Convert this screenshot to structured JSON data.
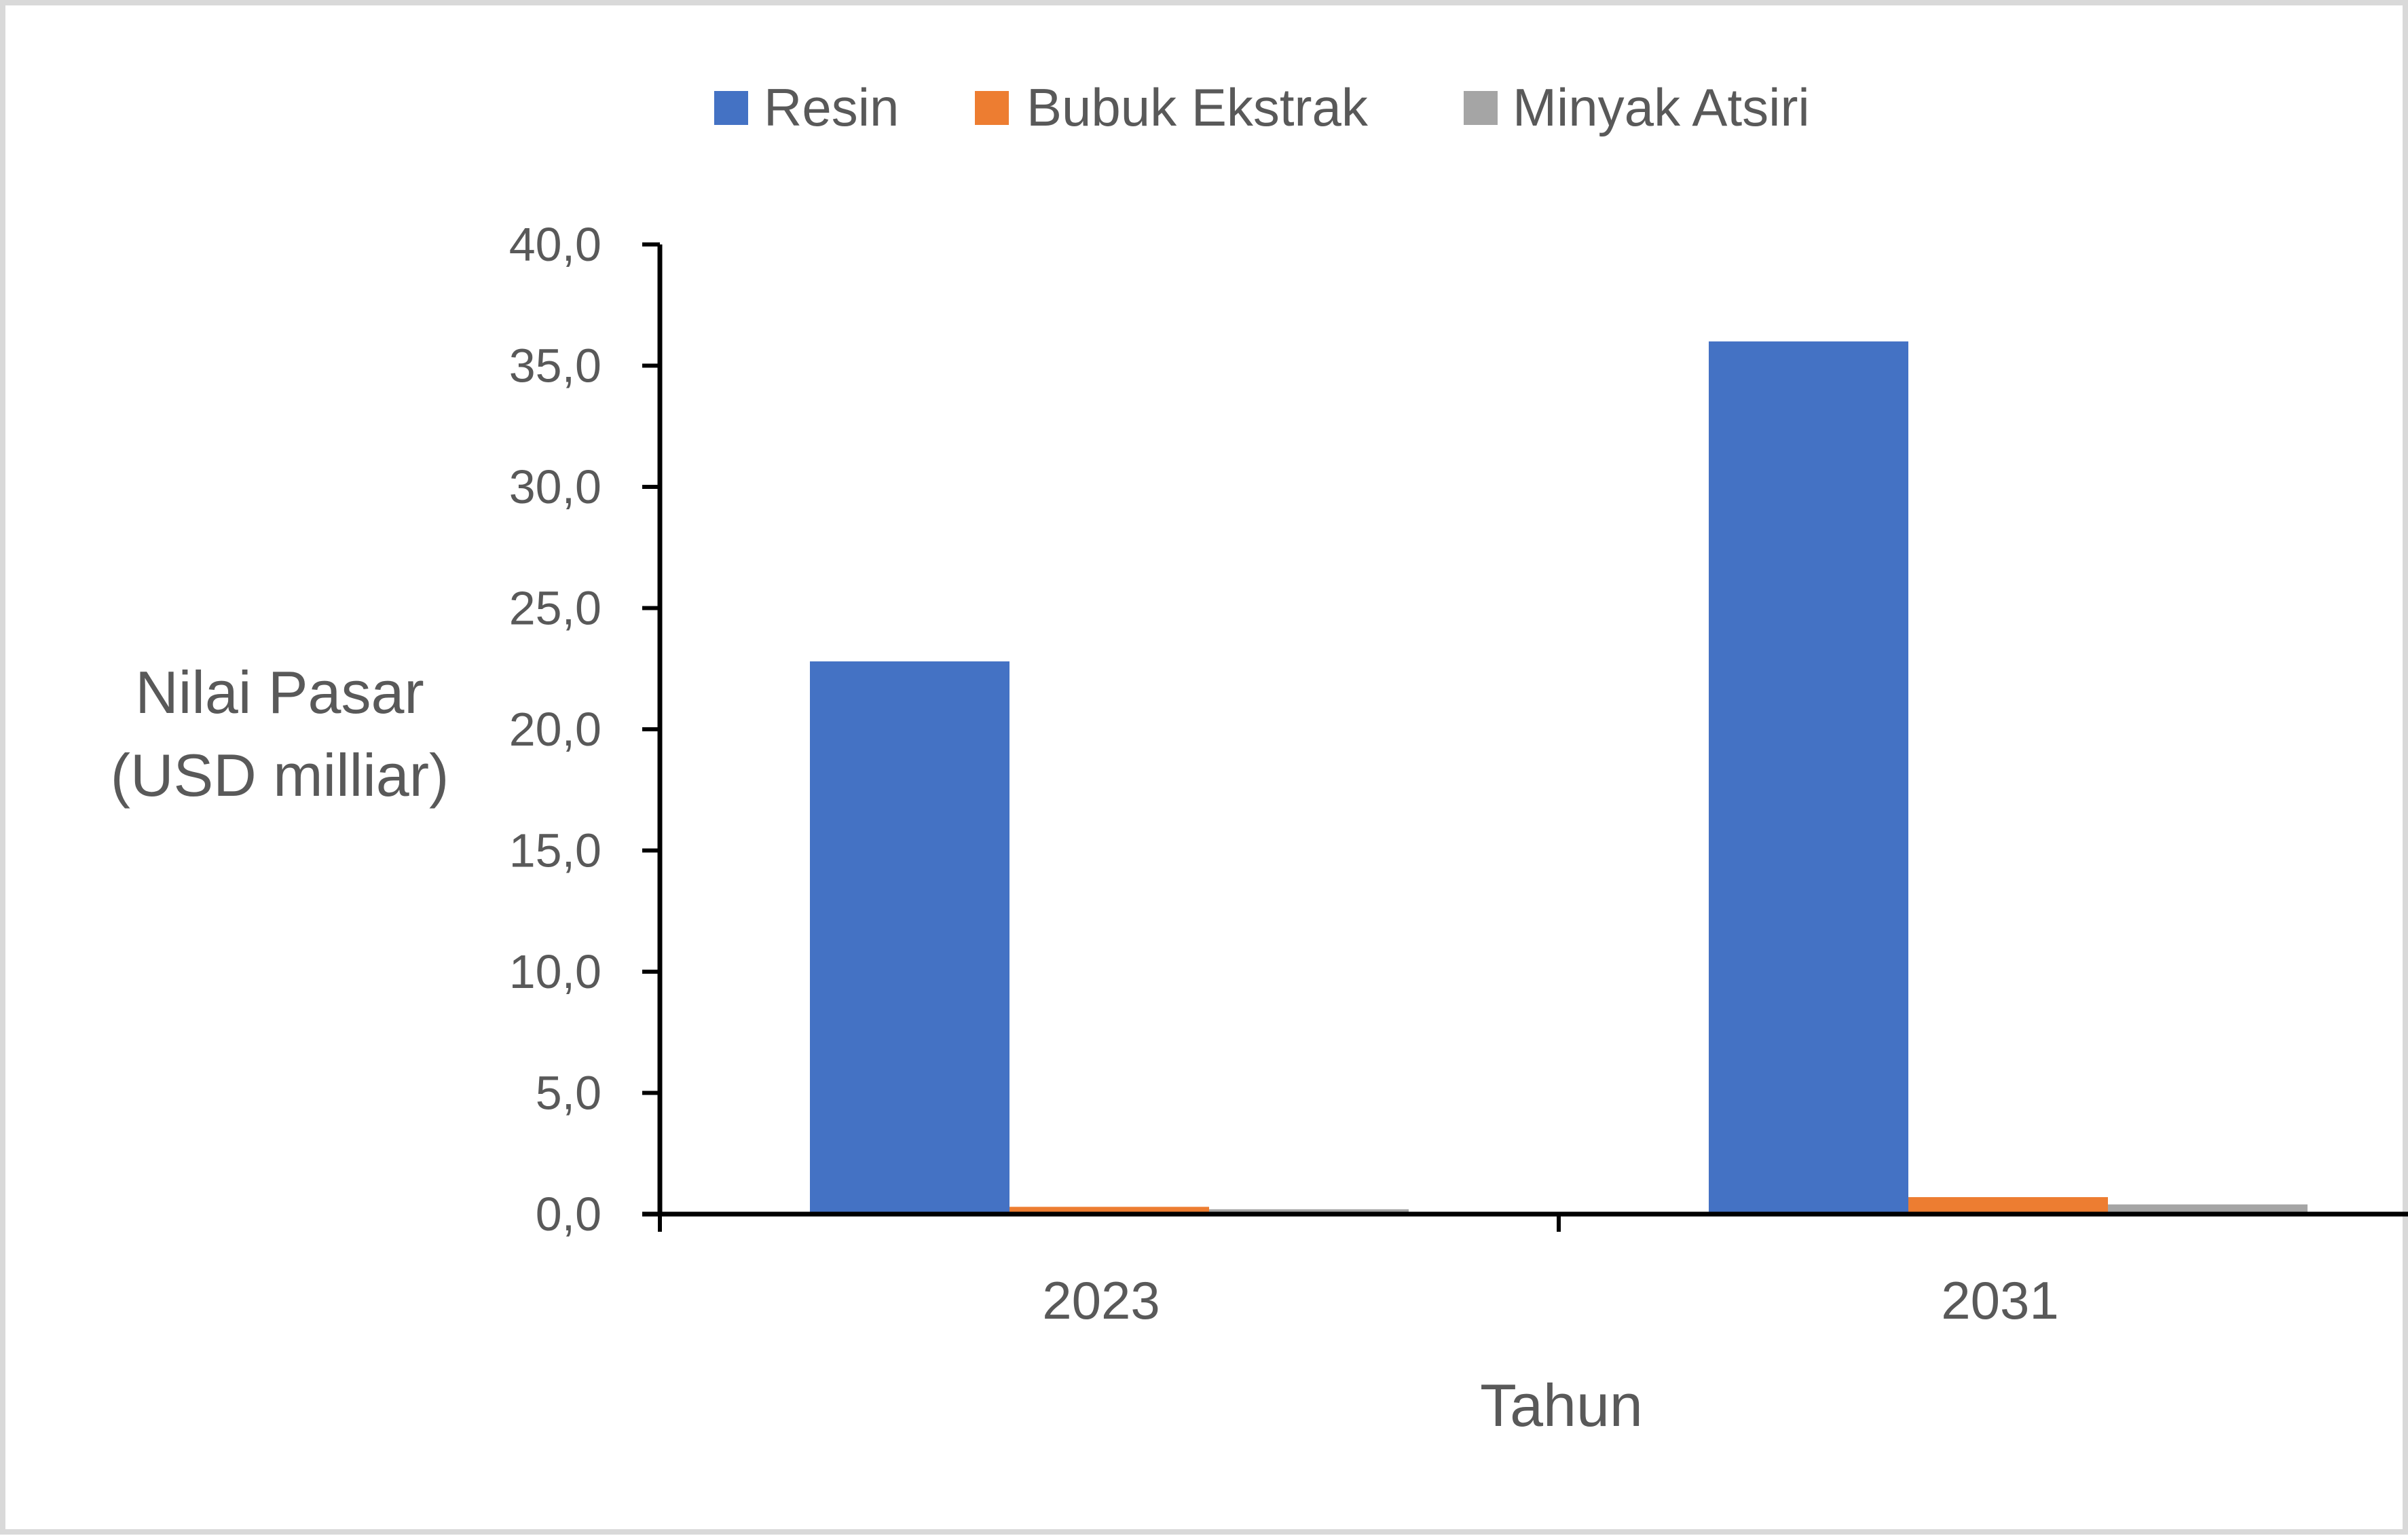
{
  "chart_data": {
    "type": "bar",
    "categories": [
      "2023",
      "2031"
    ],
    "series": [
      {
        "name": "Resin",
        "values": [
          22.8,
          36.0
        ],
        "color": "#4472C4"
      },
      {
        "name": "Bubuk Ekstrak",
        "values": [
          0.3,
          0.7
        ],
        "color": "#ED7D31"
      },
      {
        "name": "Minyak Atsiri",
        "values": [
          0.2,
          0.4
        ],
        "color": "#A5A5A5"
      }
    ],
    "xlabel": "Tahun",
    "ylabel_lines": [
      "Nilai Pasar",
      "(USD milliar)"
    ],
    "ylim": [
      0,
      40
    ],
    "yticks": [
      0,
      5,
      10,
      15,
      20,
      25,
      30,
      35,
      40
    ],
    "ytick_labels": [
      "0,0",
      "5,0",
      "10,0",
      "15,0",
      "20,0",
      "25,0",
      "30,0",
      "35,0",
      "40,0"
    ],
    "grid": false,
    "legend_position": "top-center"
  }
}
